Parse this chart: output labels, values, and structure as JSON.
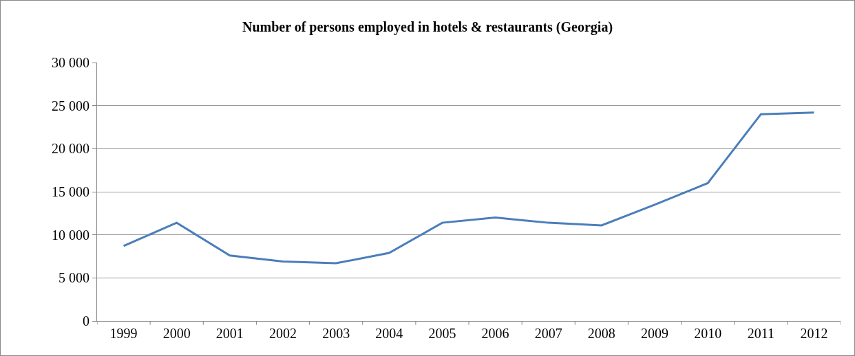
{
  "chart_data": {
    "type": "line",
    "title": "Number of persons employed in hotels & restaurants (Georgia)",
    "categories": [
      "1999",
      "2000",
      "2001",
      "2002",
      "2003",
      "2004",
      "2005",
      "2006",
      "2007",
      "2008",
      "2009",
      "2010",
      "2011",
      "2012"
    ],
    "series": [
      {
        "color": "#4a7ebb",
        "values": [
          8700,
          11400,
          7600,
          6900,
          6700,
          7900,
          11400,
          12000,
          11400,
          11100,
          13500,
          16000,
          24000,
          24200
        ]
      }
    ],
    "ylim": [
      0,
      30000
    ],
    "yticks": [
      0,
      {
        "value": 5000,
        "label": "5 000"
      },
      {
        "value": 10000,
        "label": "10 000"
      },
      {
        "value": 15000,
        "label": "15 000"
      },
      {
        "value": 20000,
        "label": "20 000"
      },
      {
        "value": 25000,
        "label": "25 000"
      },
      {
        "value": 30000,
        "label": "30 000"
      }
    ],
    "grid": "y",
    "marker": "none",
    "line_style": "solid"
  }
}
